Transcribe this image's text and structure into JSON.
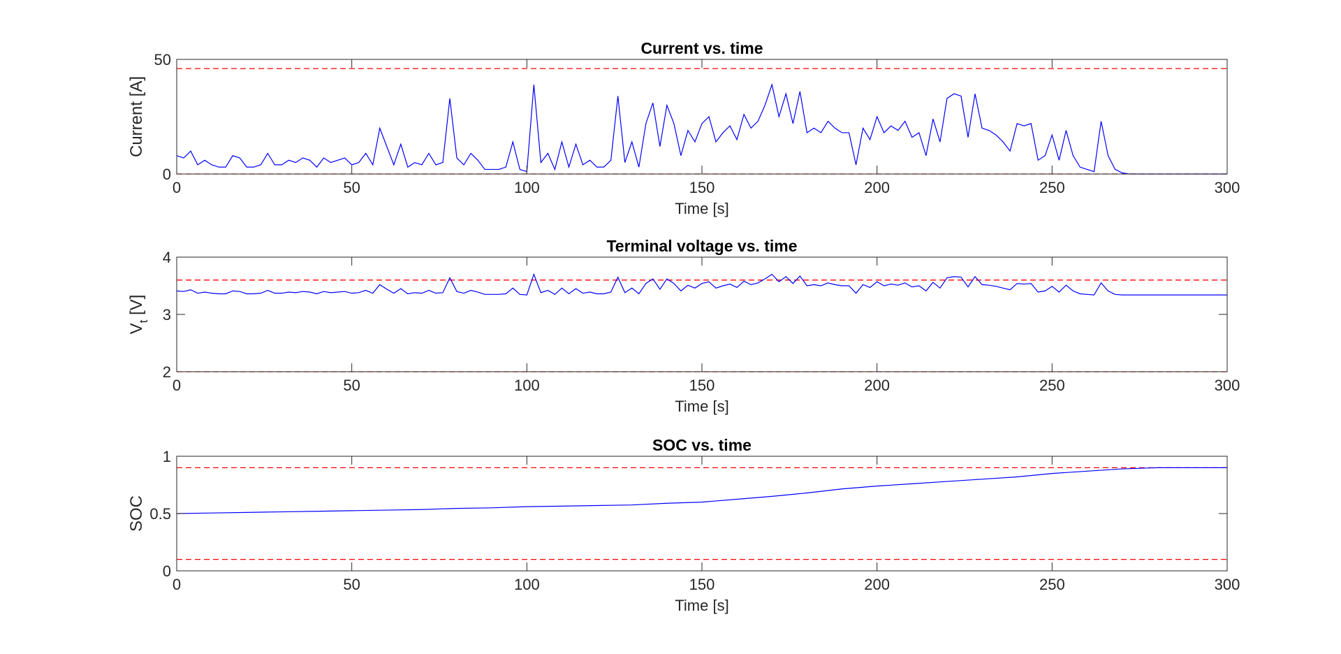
{
  "chart_data": [
    {
      "type": "line",
      "title": "Current vs. time",
      "xlabel": "Time [s]",
      "ylabel": {
        "text": "Current [A]"
      },
      "xlim": [
        0,
        300
      ],
      "xticks": [
        0,
        50,
        100,
        150,
        200,
        250,
        300
      ],
      "ylim": [
        0,
        50
      ],
      "yticks": [
        0,
        50
      ],
      "reference_lines": [
        46,
        0
      ],
      "reference_color": "#ff0000",
      "x": [
        0,
        2,
        4,
        6,
        8,
        10,
        12,
        14,
        16,
        18,
        20,
        22,
        24,
        26,
        28,
        30,
        32,
        34,
        36,
        38,
        40,
        42,
        44,
        46,
        48,
        50,
        52,
        54,
        56,
        58,
        60,
        62,
        64,
        66,
        68,
        70,
        72,
        74,
        76,
        78,
        80,
        82,
        84,
        86,
        88,
        90,
        92,
        94,
        96,
        98,
        100,
        102,
        104,
        106,
        108,
        110,
        112,
        114,
        116,
        118,
        120,
        122,
        124,
        126,
        128,
        130,
        132,
        134,
        136,
        138,
        140,
        142,
        144,
        146,
        148,
        150,
        152,
        154,
        156,
        158,
        160,
        162,
        164,
        166,
        168,
        170,
        172,
        174,
        176,
        178,
        180,
        182,
        184,
        186,
        188,
        190,
        192,
        194,
        196,
        198,
        200,
        202,
        204,
        206,
        208,
        210,
        212,
        214,
        216,
        218,
        220,
        222,
        224,
        226,
        228,
        230,
        232,
        234,
        236,
        238,
        240,
        242,
        244,
        246,
        248,
        250,
        252,
        254,
        256,
        258,
        260,
        262,
        264,
        266,
        268,
        270,
        272,
        274,
        276,
        278,
        280,
        282,
        284,
        286,
        288,
        290,
        292,
        294,
        296,
        298,
        300
      ],
      "series": [
        {
          "color": "#0000ff",
          "values": [
            8,
            7,
            10,
            4,
            6,
            4,
            3,
            3,
            8,
            7,
            3,
            3,
            4,
            9,
            4,
            4,
            6,
            5,
            7,
            6,
            3,
            7,
            5,
            6,
            7,
            4,
            5,
            9,
            4,
            20,
            12,
            4,
            13,
            3,
            5,
            4,
            9,
            4,
            5,
            33,
            7,
            4,
            9,
            6,
            2,
            2,
            2,
            3,
            14,
            2,
            1,
            39,
            5,
            9,
            2,
            14,
            3,
            13,
            4,
            6,
            3,
            3,
            6,
            34,
            5,
            14,
            3,
            22,
            31,
            12,
            30,
            22,
            8,
            19,
            14,
            22,
            25,
            14,
            18,
            21,
            15,
            26,
            20,
            23,
            30,
            39,
            25,
            35,
            22,
            36,
            18,
            20,
            18,
            23,
            20,
            18,
            18,
            4,
            20,
            15,
            25,
            18,
            21,
            19,
            23,
            16,
            18,
            8,
            24,
            14,
            33,
            35,
            34,
            16,
            35,
            20,
            19,
            17,
            14,
            10,
            22,
            21,
            22,
            6,
            8,
            17,
            6,
            19,
            8,
            3,
            2,
            1,
            23,
            8,
            2,
            0.5,
            0,
            0,
            0,
            0,
            0,
            0,
            0,
            0,
            0,
            0,
            0,
            0,
            0,
            0,
            0
          ]
        }
      ]
    },
    {
      "type": "line",
      "title": "Terminal voltage vs. time",
      "xlabel": "Time [s]",
      "ylabel": {
        "text": "V",
        "subscript": "t",
        "suffix": " [V]"
      },
      "xlim": [
        0,
        300
      ],
      "xticks": [
        0,
        50,
        100,
        150,
        200,
        250,
        300
      ],
      "ylim": [
        2,
        4
      ],
      "yticks": [
        2,
        3,
        4
      ],
      "reference_lines": [
        3.6,
        2
      ],
      "reference_color": "#ff0000",
      "x": [
        0,
        2,
        4,
        6,
        8,
        10,
        12,
        14,
        16,
        18,
        20,
        22,
        24,
        26,
        28,
        30,
        32,
        34,
        36,
        38,
        40,
        42,
        44,
        46,
        48,
        50,
        52,
        54,
        56,
        58,
        60,
        62,
        64,
        66,
        68,
        70,
        72,
        74,
        76,
        78,
        80,
        82,
        84,
        86,
        88,
        90,
        92,
        94,
        96,
        98,
        100,
        102,
        104,
        106,
        108,
        110,
        112,
        114,
        116,
        118,
        120,
        122,
        124,
        126,
        128,
        130,
        132,
        134,
        136,
        138,
        140,
        142,
        144,
        146,
        148,
        150,
        152,
        154,
        156,
        158,
        160,
        162,
        164,
        166,
        168,
        170,
        172,
        174,
        176,
        178,
        180,
        182,
        184,
        186,
        188,
        190,
        192,
        194,
        196,
        198,
        200,
        202,
        204,
        206,
        208,
        210,
        212,
        214,
        216,
        218,
        220,
        222,
        224,
        226,
        228,
        230,
        232,
        234,
        236,
        238,
        240,
        242,
        244,
        246,
        248,
        250,
        252,
        254,
        256,
        258,
        260,
        262,
        264,
        266,
        268,
        270,
        272,
        274,
        276,
        278,
        280,
        282,
        284,
        286,
        288,
        290,
        292,
        294,
        296,
        298,
        300
      ],
      "series": [
        {
          "color": "#0000ff",
          "values": [
            3.41,
            3.4,
            3.43,
            3.37,
            3.39,
            3.37,
            3.36,
            3.36,
            3.41,
            3.4,
            3.36,
            3.36,
            3.37,
            3.42,
            3.37,
            3.37,
            3.39,
            3.38,
            3.4,
            3.39,
            3.36,
            3.4,
            3.38,
            3.39,
            3.4,
            3.37,
            3.38,
            3.42,
            3.37,
            3.52,
            3.44,
            3.37,
            3.45,
            3.36,
            3.38,
            3.37,
            3.42,
            3.37,
            3.38,
            3.64,
            3.4,
            3.37,
            3.42,
            3.39,
            3.35,
            3.35,
            3.35,
            3.36,
            3.46,
            3.35,
            3.34,
            3.7,
            3.38,
            3.42,
            3.35,
            3.46,
            3.36,
            3.45,
            3.37,
            3.39,
            3.36,
            3.36,
            3.39,
            3.65,
            3.38,
            3.46,
            3.36,
            3.54,
            3.62,
            3.44,
            3.62,
            3.54,
            3.41,
            3.51,
            3.46,
            3.54,
            3.57,
            3.46,
            3.5,
            3.53,
            3.47,
            3.58,
            3.52,
            3.55,
            3.62,
            3.7,
            3.57,
            3.66,
            3.54,
            3.67,
            3.5,
            3.52,
            3.5,
            3.55,
            3.52,
            3.5,
            3.5,
            3.37,
            3.52,
            3.47,
            3.57,
            3.5,
            3.53,
            3.51,
            3.55,
            3.48,
            3.5,
            3.41,
            3.56,
            3.46,
            3.64,
            3.66,
            3.65,
            3.48,
            3.66,
            3.52,
            3.51,
            3.49,
            3.46,
            3.43,
            3.54,
            3.53,
            3.54,
            3.39,
            3.41,
            3.49,
            3.39,
            3.51,
            3.41,
            3.36,
            3.35,
            3.34,
            3.55,
            3.41,
            3.35,
            3.34,
            3.34,
            3.34,
            3.34,
            3.34,
            3.34,
            3.34,
            3.34,
            3.34,
            3.34,
            3.34,
            3.34,
            3.34,
            3.34,
            3.34,
            3.34
          ]
        }
      ]
    },
    {
      "type": "line",
      "title": "SOC vs. time",
      "xlabel": "Time [s]",
      "ylabel": {
        "text": "SOC"
      },
      "xlim": [
        0,
        300
      ],
      "xticks": [
        0,
        50,
        100,
        150,
        200,
        250,
        300
      ],
      "ylim": [
        0,
        1
      ],
      "yticks": [
        0,
        0.5,
        1
      ],
      "reference_lines": [
        0.9,
        0.1
      ],
      "reference_color": "#ff0000",
      "x": [
        0,
        10,
        20,
        30,
        40,
        50,
        60,
        70,
        80,
        90,
        100,
        110,
        120,
        130,
        140,
        150,
        160,
        170,
        180,
        190,
        200,
        210,
        220,
        230,
        240,
        250,
        260,
        270,
        280,
        290,
        300
      ],
      "series": [
        {
          "color": "#0000ff",
          "values": [
            0.5,
            0.505,
            0.51,
            0.515,
            0.52,
            0.525,
            0.53,
            0.535,
            0.545,
            0.55,
            0.56,
            0.565,
            0.57,
            0.575,
            0.59,
            0.6,
            0.625,
            0.65,
            0.68,
            0.715,
            0.74,
            0.76,
            0.78,
            0.8,
            0.82,
            0.85,
            0.87,
            0.89,
            0.9,
            0.9,
            0.9
          ]
        }
      ]
    }
  ]
}
